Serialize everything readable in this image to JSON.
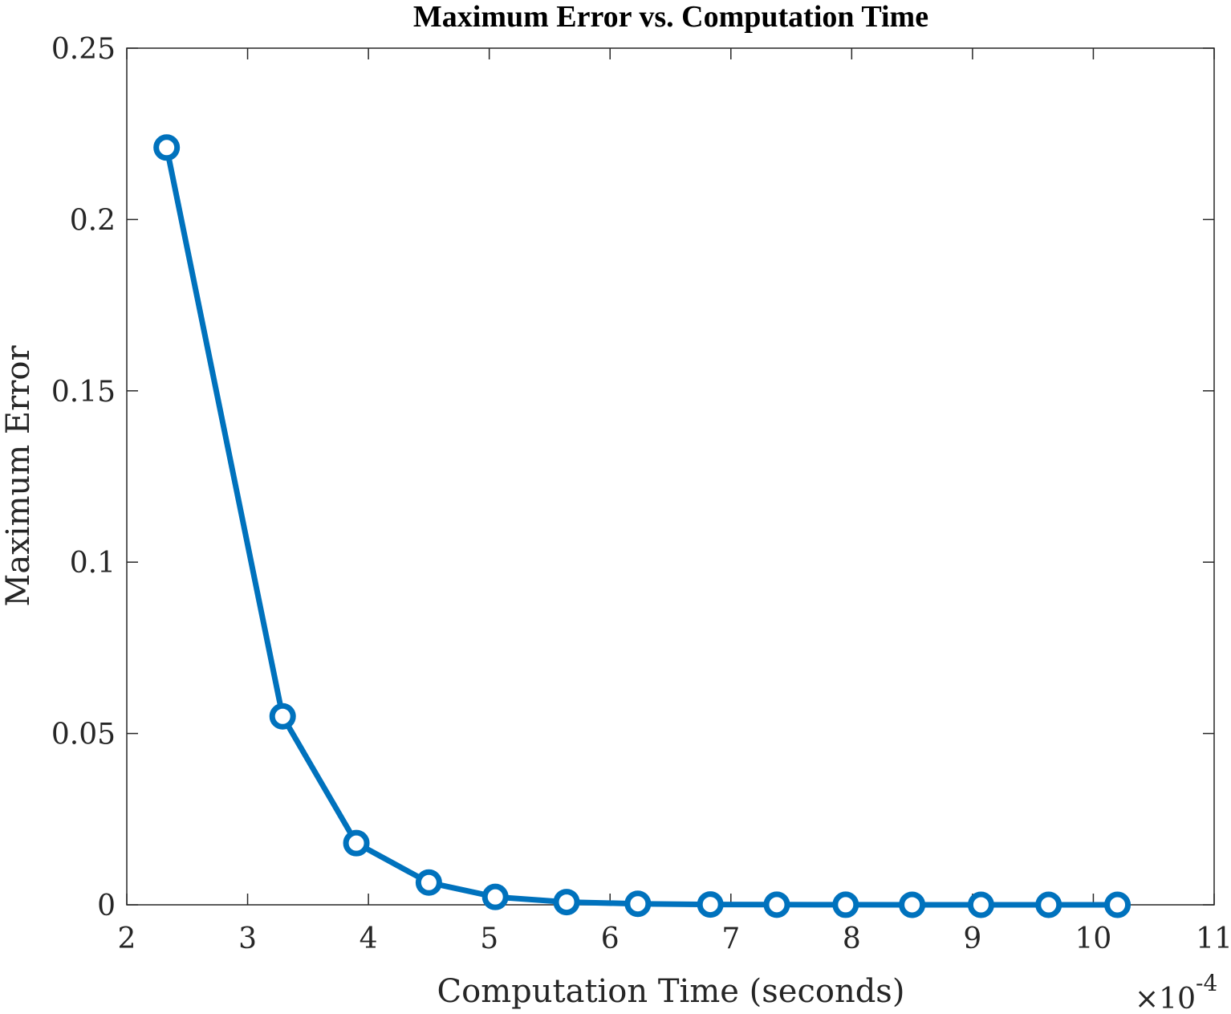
{
  "chart_data": {
    "type": "line",
    "title": "Maximum Error vs. Computation Time",
    "xlabel": "Computation Time (seconds)",
    "ylabel": "Maximum Error",
    "x_exponent_label": "×10",
    "x_exponent_power": "-4",
    "xlim": [
      2,
      11
    ],
    "ylim": [
      0,
      0.25
    ],
    "x_ticks": [
      2,
      3,
      4,
      5,
      6,
      7,
      8,
      9,
      10,
      11
    ],
    "x_tick_labels": [
      "2",
      "3",
      "4",
      "5",
      "6",
      "7",
      "8",
      "9",
      "10",
      "11"
    ],
    "y_ticks": [
      0,
      0.05,
      0.1,
      0.15,
      0.2,
      0.25
    ],
    "y_tick_labels": [
      "0",
      "0.05",
      "0.1",
      "0.15",
      "0.2",
      "0.25"
    ],
    "grid": false,
    "marker": "circle",
    "color": "#0072BD",
    "series": [
      {
        "x": [
          2.33,
          3.29,
          3.9,
          4.5,
          5.05,
          5.64,
          6.23,
          6.83,
          7.38,
          7.95,
          8.5,
          9.07,
          9.63,
          10.2
        ],
        "y": [
          0.221,
          0.055,
          0.018,
          0.0065,
          0.0023,
          0.0008,
          0.0003,
          0.0001,
          4e-05,
          2e-05,
          1e-05,
          0.0,
          0.0,
          0.0
        ]
      }
    ]
  }
}
